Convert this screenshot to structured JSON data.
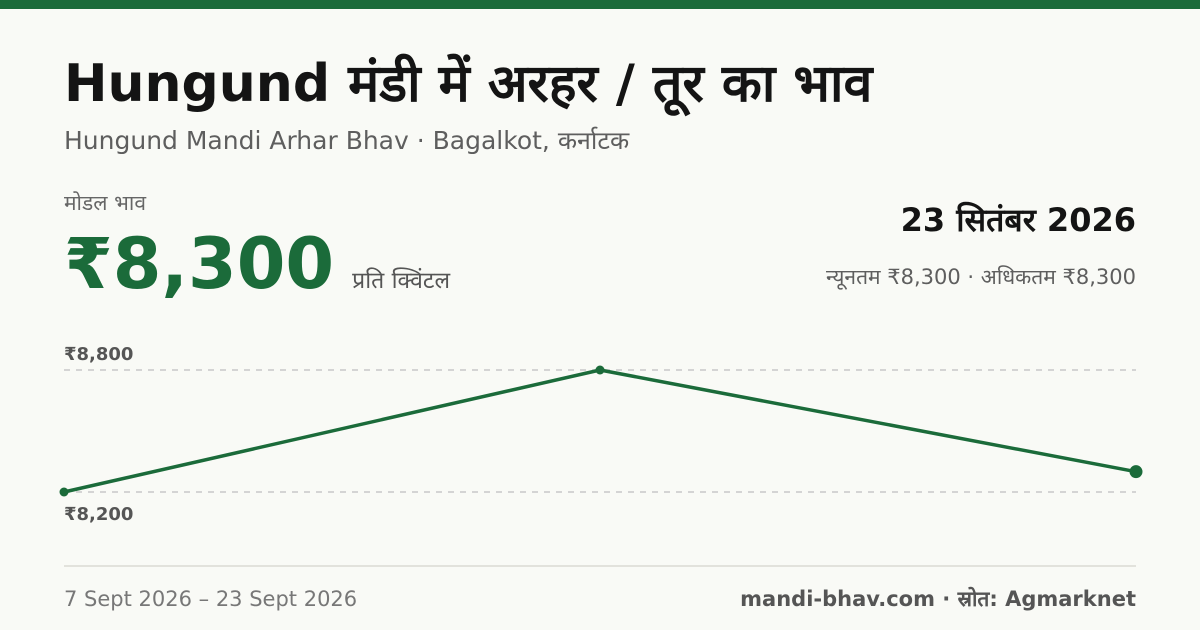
{
  "header": {
    "title": "Hungund मंडी में अरहर / तूर का भाव",
    "subtitle": "Hungund Mandi Arhar Bhav · Bagalkot, कर्नाटक"
  },
  "summary": {
    "modal_label": "मोडल भाव",
    "modal_price": "₹8,300",
    "unit": "प्रति क्विंटल",
    "date": "23 सितंबर 2026",
    "range_text": "न्यूनतम ₹8,300 · अधिकतम ₹8,300"
  },
  "footer": {
    "date_range": "7 Sept 2026 – 23 Sept 2026",
    "source": "mandi-bhav.com · स्रोत: Agmarknet"
  },
  "colors": {
    "accent": "#1b6b3a",
    "background": "#f9faf6",
    "gridline": "#c8c8c8"
  },
  "chart_data": {
    "type": "line",
    "series": [
      {
        "values": [
          8200,
          8800,
          8300
        ]
      }
    ],
    "ylim": [
      8200,
      8800
    ],
    "yticks": [
      8200,
      8800
    ],
    "ytick_labels": [
      "₹8,200",
      "₹8,800"
    ],
    "grid": true,
    "legend": false
  }
}
